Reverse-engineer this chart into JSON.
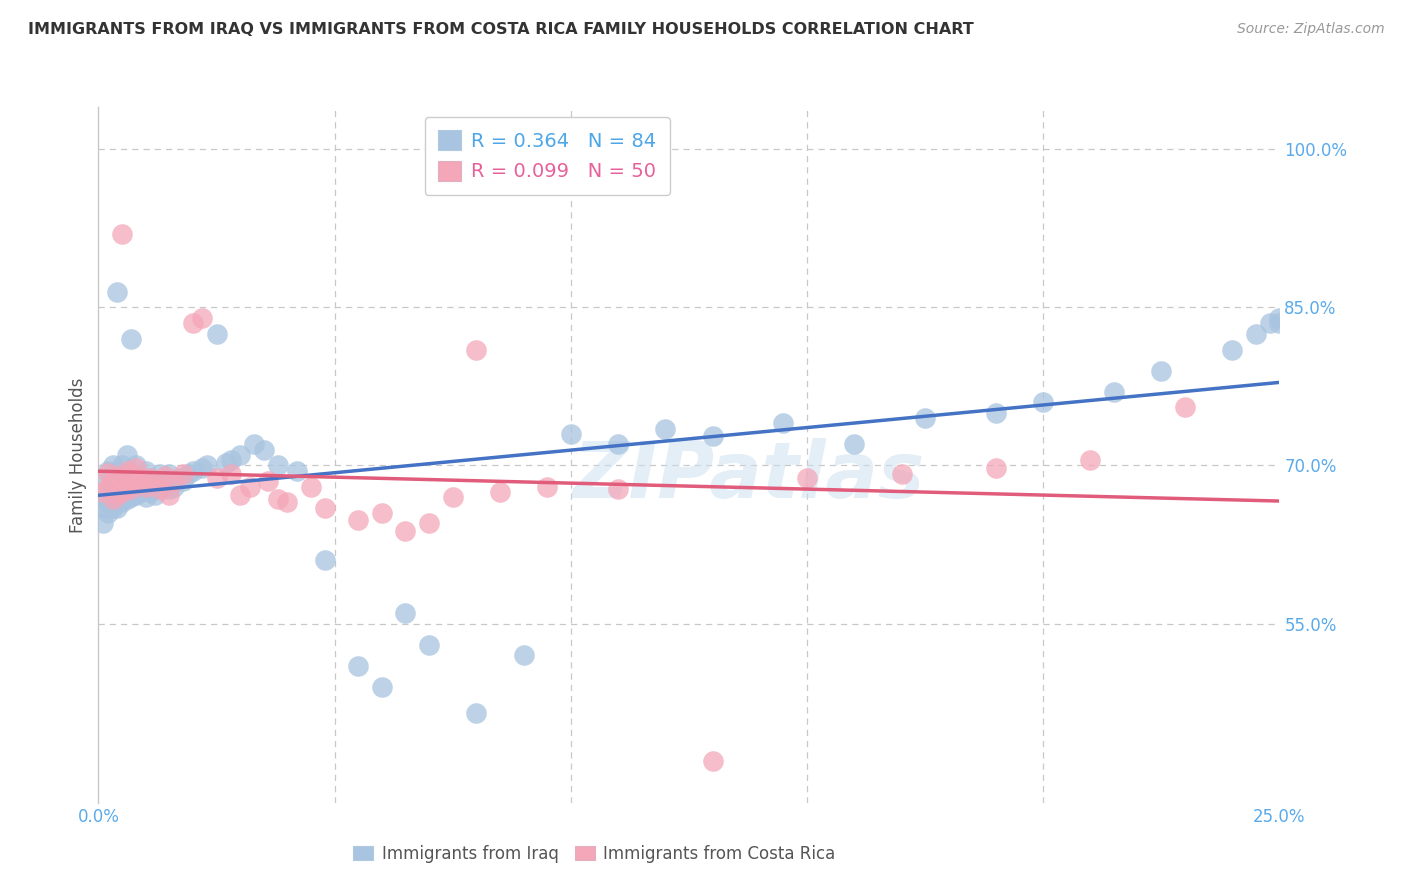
{
  "title": "IMMIGRANTS FROM IRAQ VS IMMIGRANTS FROM COSTA RICA FAMILY HOUSEHOLDS CORRELATION CHART",
  "source": "Source: ZipAtlas.com",
  "ylabel": "Family Households",
  "xlim": [
    0.0,
    0.25
  ],
  "ylim": [
    0.38,
    1.04
  ],
  "xticks": [
    0.0,
    0.05,
    0.1,
    0.15,
    0.2,
    0.25
  ],
  "yticks_right": [
    0.55,
    0.7,
    0.85,
    1.0
  ],
  "ytick_labels_right": [
    "55.0%",
    "70.0%",
    "85.0%",
    "100.0%"
  ],
  "xtick_labels": [
    "0.0%",
    "",
    "",
    "",
    "",
    "25.0%"
  ],
  "legend_iraq_R": "0.364",
  "legend_iraq_N": "84",
  "legend_cr_R": "0.099",
  "legend_cr_N": "50",
  "iraq_color": "#a8c4e0",
  "cr_color": "#f4a7b9",
  "iraq_line_color": "#4472c4",
  "cr_line_color": "#e05c7a",
  "watermark": "ZIPatlas",
  "background_color": "#ffffff",
  "grid_color": "#c8c8c8",
  "iraq_x": [
    0.001,
    0.001,
    0.001,
    0.002,
    0.002,
    0.002,
    0.002,
    0.002,
    0.003,
    0.003,
    0.003,
    0.003,
    0.004,
    0.004,
    0.004,
    0.004,
    0.004,
    0.005,
    0.005,
    0.005,
    0.005,
    0.006,
    0.006,
    0.006,
    0.006,
    0.007,
    0.007,
    0.007,
    0.007,
    0.008,
    0.008,
    0.008,
    0.009,
    0.009,
    0.01,
    0.01,
    0.01,
    0.011,
    0.011,
    0.012,
    0.012,
    0.013,
    0.013,
    0.014,
    0.015,
    0.015,
    0.016,
    0.017,
    0.018,
    0.019,
    0.02,
    0.022,
    0.023,
    0.025,
    0.027,
    0.028,
    0.03,
    0.033,
    0.035,
    0.038,
    0.042,
    0.048,
    0.055,
    0.06,
    0.065,
    0.07,
    0.08,
    0.09,
    0.1,
    0.11,
    0.12,
    0.13,
    0.145,
    0.16,
    0.175,
    0.19,
    0.2,
    0.215,
    0.225,
    0.24,
    0.245,
    0.248,
    0.25,
    0.25
  ],
  "iraq_y": [
    0.645,
    0.66,
    0.67,
    0.655,
    0.665,
    0.675,
    0.685,
    0.695,
    0.66,
    0.67,
    0.68,
    0.7,
    0.66,
    0.672,
    0.685,
    0.695,
    0.865,
    0.665,
    0.675,
    0.688,
    0.7,
    0.668,
    0.678,
    0.69,
    0.71,
    0.67,
    0.68,
    0.695,
    0.82,
    0.672,
    0.682,
    0.7,
    0.675,
    0.688,
    0.67,
    0.682,
    0.695,
    0.675,
    0.688,
    0.672,
    0.685,
    0.678,
    0.692,
    0.68,
    0.678,
    0.692,
    0.68,
    0.688,
    0.685,
    0.692,
    0.695,
    0.698,
    0.7,
    0.825,
    0.702,
    0.705,
    0.71,
    0.72,
    0.715,
    0.7,
    0.695,
    0.61,
    0.51,
    0.49,
    0.56,
    0.53,
    0.465,
    0.52,
    0.73,
    0.72,
    0.735,
    0.728,
    0.74,
    0.72,
    0.745,
    0.75,
    0.76,
    0.77,
    0.79,
    0.81,
    0.825,
    0.835,
    0.835,
    0.84
  ],
  "cr_x": [
    0.001,
    0.002,
    0.002,
    0.003,
    0.003,
    0.004,
    0.004,
    0.005,
    0.005,
    0.006,
    0.006,
    0.007,
    0.007,
    0.008,
    0.008,
    0.009,
    0.01,
    0.011,
    0.012,
    0.013,
    0.014,
    0.015,
    0.016,
    0.018,
    0.02,
    0.022,
    0.025,
    0.028,
    0.032,
    0.036,
    0.04,
    0.045,
    0.055,
    0.065,
    0.075,
    0.085,
    0.095,
    0.11,
    0.13,
    0.15,
    0.17,
    0.19,
    0.21,
    0.23,
    0.03,
    0.038,
    0.048,
    0.06,
    0.07,
    0.08
  ],
  "cr_y": [
    0.675,
    0.68,
    0.693,
    0.668,
    0.685,
    0.672,
    0.69,
    0.675,
    0.92,
    0.68,
    0.695,
    0.678,
    0.692,
    0.683,
    0.698,
    0.688,
    0.68,
    0.688,
    0.685,
    0.678,
    0.69,
    0.672,
    0.685,
    0.692,
    0.835,
    0.84,
    0.688,
    0.692,
    0.68,
    0.685,
    0.665,
    0.68,
    0.648,
    0.638,
    0.67,
    0.675,
    0.68,
    0.678,
    0.42,
    0.688,
    0.692,
    0.698,
    0.705,
    0.755,
    0.672,
    0.668,
    0.66,
    0.655,
    0.645,
    0.81
  ]
}
